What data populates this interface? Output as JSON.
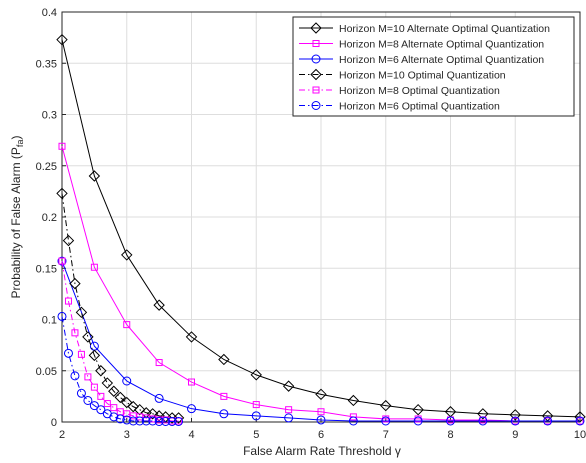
{
  "chart_data": {
    "type": "line",
    "xlabel": "False Alarm Rate Threshold γ",
    "ylabel_main": "Probability of False Alarm (P",
    "ylabel_sub": "fa",
    "ylabel_close": ")",
    "xlim": [
      2,
      10
    ],
    "ylim": [
      0,
      0.4
    ],
    "xticks": [
      2,
      3,
      4,
      5,
      6,
      7,
      8,
      9,
      10
    ],
    "yticks": [
      0,
      0.05,
      0.1,
      0.15,
      0.2,
      0.25,
      0.3,
      0.35,
      0.4
    ],
    "grid": true,
    "legend_position": "top-right",
    "series": [
      {
        "name": "Horizon M=10 Alternate Optimal Quantization",
        "color": "#000000",
        "marker": "diamond",
        "dash": "solid",
        "x": [
          2,
          2.5,
          3,
          3.5,
          4,
          4.5,
          5,
          5.5,
          6,
          6.5,
          7,
          7.5,
          8,
          8.5,
          9,
          9.5,
          10
        ],
        "y": [
          0.373,
          0.24,
          0.163,
          0.114,
          0.083,
          0.061,
          0.046,
          0.035,
          0.027,
          0.021,
          0.016,
          0.012,
          0.01,
          0.008,
          0.007,
          0.006,
          0.005
        ]
      },
      {
        "name": "Horizon M=8 Alternate Optimal Quantization",
        "color": "#ff00ff",
        "marker": "square",
        "dash": "solid",
        "x": [
          2,
          2.5,
          3,
          3.5,
          4,
          4.5,
          5,
          5.5,
          6,
          6.5,
          7,
          7.5,
          8,
          8.5,
          9,
          9.5,
          10
        ],
        "y": [
          0.269,
          0.151,
          0.095,
          0.058,
          0.039,
          0.025,
          0.017,
          0.012,
          0.01,
          0.005,
          0.003,
          0.003,
          0.002,
          0.002,
          0.001,
          0.001,
          0.001
        ]
      },
      {
        "name": "Horizon M=6 Alternate Optimal Quantization",
        "color": "#0000ff",
        "marker": "circle",
        "dash": "solid",
        "x": [
          2,
          2.5,
          3,
          3.5,
          4,
          4.5,
          5,
          5.5,
          6,
          6.5,
          7,
          7.5,
          8,
          8.5,
          9,
          9.5,
          10
        ],
        "y": [
          0.157,
          0.074,
          0.04,
          0.023,
          0.013,
          0.008,
          0.006,
          0.004,
          0.002,
          0.001,
          0.001,
          0.001,
          0.001,
          0.001,
          0.001,
          0.001,
          0.001
        ]
      },
      {
        "name": "Horizon M=10 Optimal Quantization",
        "color": "#000000",
        "marker": "diamond",
        "dash": "dashdot",
        "x": [
          2,
          2.1,
          2.2,
          2.3,
          2.4,
          2.5,
          2.6,
          2.7,
          2.8,
          2.9,
          3.0,
          3.1,
          3.2,
          3.3,
          3.4,
          3.5,
          3.6,
          3.7,
          3.8
        ],
        "y": [
          0.223,
          0.177,
          0.135,
          0.107,
          0.083,
          0.065,
          0.05,
          0.038,
          0.03,
          0.024,
          0.019,
          0.015,
          0.012,
          0.009,
          0.008,
          0.006,
          0.005,
          0.004,
          0.004
        ]
      },
      {
        "name": "Horizon M=8 Optimal Quantization",
        "color": "#ff00ff",
        "marker": "square",
        "dash": "dashdot",
        "x": [
          2,
          2.1,
          2.2,
          2.3,
          2.4,
          2.5,
          2.6,
          2.7,
          2.8,
          2.9,
          3.0,
          3.1,
          3.2,
          3.3,
          3.4,
          3.5,
          3.6,
          3.7,
          3.8
        ],
        "y": [
          0.157,
          0.118,
          0.087,
          0.066,
          0.044,
          0.034,
          0.025,
          0.018,
          0.014,
          0.01,
          0.008,
          0.006,
          0.005,
          0.004,
          0.003,
          0.002,
          0.002,
          0.001,
          0.001
        ]
      },
      {
        "name": "Horizon M=6 Optimal Quantization",
        "color": "#0000ff",
        "marker": "circle",
        "dash": "dashdot",
        "x": [
          2,
          2.1,
          2.2,
          2.3,
          2.4,
          2.5,
          2.6,
          2.7,
          2.8,
          2.9,
          3.0,
          3.1,
          3.2,
          3.3,
          3.4,
          3.5,
          3.6,
          3.7,
          3.8
        ],
        "y": [
          0.103,
          0.067,
          0.045,
          0.028,
          0.021,
          0.016,
          0.012,
          0.008,
          0.005,
          0.003,
          0.002,
          0.001,
          0.001,
          0.001,
          0.001,
          0.0005,
          0.0005,
          0.0005,
          0.0005
        ]
      }
    ]
  }
}
